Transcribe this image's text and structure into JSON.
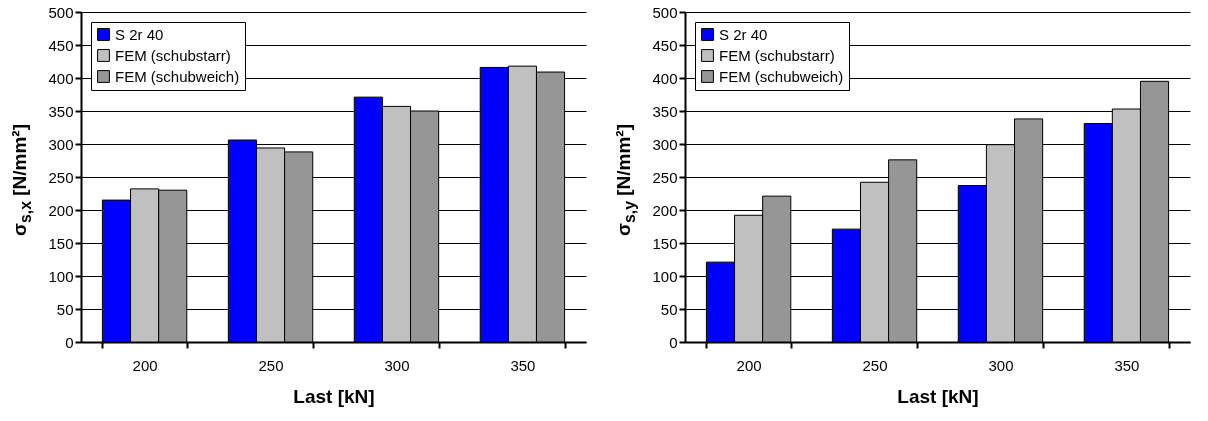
{
  "chart_data": [
    {
      "type": "bar",
      "xlabel": "Last [kN]",
      "ylabel": "σ$_{s,x}$ [N/mm²]",
      "categories": [
        "200",
        "250",
        "300",
        "350"
      ],
      "series": [
        {
          "name": "S 2r 40",
          "color": "#0000ff",
          "values": [
            215,
            306,
            371,
            416
          ]
        },
        {
          "name": "FEM (schubstarr)",
          "color": "#c0c0c0",
          "values": [
            232,
            294,
            357,
            418
          ]
        },
        {
          "name": "FEM (schubweich)",
          "color": "#969696",
          "values": [
            230,
            288,
            350,
            409
          ]
        }
      ],
      "ylim": [
        0,
        500
      ],
      "yticks": [
        0,
        50,
        100,
        150,
        200,
        250,
        300,
        350,
        400,
        450,
        500
      ],
      "grid": "y",
      "legend": "top left"
    },
    {
      "type": "bar",
      "xlabel": "Last [kN]",
      "ylabel": "σ$_{s,y}$ [N/mm²]",
      "categories": [
        "200",
        "250",
        "300",
        "350"
      ],
      "series": [
        {
          "name": "S 2r 40",
          "color": "#0000ff",
          "values": [
            121,
            171,
            237,
            331
          ]
        },
        {
          "name": "FEM (schubstarr)",
          "color": "#c0c0c0",
          "values": [
            192,
            242,
            299,
            353
          ]
        },
        {
          "name": "FEM (schubweich)",
          "color": "#969696",
          "values": [
            221,
            276,
            338,
            395
          ]
        }
      ],
      "ylim": [
        0,
        500
      ],
      "yticks": [
        0,
        50,
        100,
        150,
        200,
        250,
        300,
        350,
        400,
        450,
        500
      ],
      "grid": "y",
      "legend": "top left"
    }
  ]
}
